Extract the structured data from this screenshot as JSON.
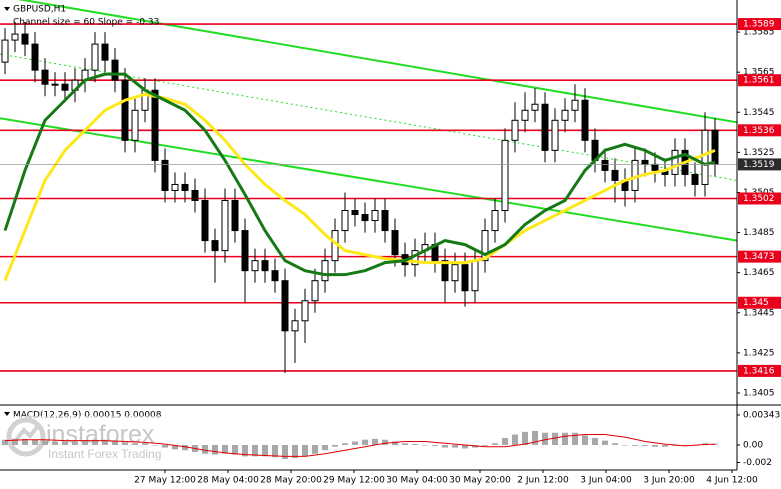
{
  "chart_data": {
    "type": "candlestick",
    "title": "GBPUSD,H1",
    "subtitle": "Channel size = 60 Slope = -0.33",
    "open": [
      1.357,
      1.3581,
      1.3584,
      1.3579,
      1.3566,
      1.3559,
      1.3559,
      1.3556,
      1.3561,
      1.3566,
      1.3579,
      1.3571,
      1.3561,
      1.3531,
      1.3546,
      1.3556,
      1.3521,
      1.3506,
      1.3509,
      1.3506,
      1.3501,
      1.3481,
      1.3476,
      1.3501,
      1.3486,
      1.3466,
      1.3471,
      1.3466,
      1.3461,
      1.3436,
      1.3441,
      1.3451,
      1.3461,
      1.3471,
      1.3486,
      1.3496,
      1.3494,
      1.3491,
      1.3496,
      1.3486,
      1.3474,
      1.3469,
      1.3476,
      1.3479,
      1.3471,
      1.3461,
      1.3469,
      1.3456,
      1.3471,
      1.3486,
      1.3496,
      1.3531,
      1.3541,
      1.3546,
      1.3549,
      1.3526,
      1.3541,
      1.3546,
      1.3551,
      1.3531,
      1.3521,
      1.3516,
      1.3511,
      1.3506,
      1.3521,
      1.3519,
      1.3516,
      1.3514,
      1.3526,
      1.3514,
      1.3509,
      1.3536
    ],
    "high": [
      1.3587,
      1.359,
      1.359,
      1.3585,
      1.3572,
      1.3565,
      1.3565,
      1.3567,
      1.3572,
      1.3585,
      1.3585,
      1.3577,
      1.3567,
      1.3552,
      1.3562,
      1.3562,
      1.3527,
      1.3515,
      1.3515,
      1.3512,
      1.3507,
      1.3487,
      1.3507,
      1.3507,
      1.3492,
      1.3477,
      1.3477,
      1.3472,
      1.3467,
      1.3447,
      1.3457,
      1.3467,
      1.3477,
      1.3492,
      1.3505,
      1.3502,
      1.35,
      1.3502,
      1.3502,
      1.3492,
      1.348,
      1.3482,
      1.3485,
      1.3485,
      1.3477,
      1.3475,
      1.3475,
      1.3477,
      1.3492,
      1.3502,
      1.3537,
      1.355,
      1.3555,
      1.3557,
      1.3555,
      1.3547,
      1.3552,
      1.3559,
      1.3557,
      1.3537,
      1.3527,
      1.3522,
      1.3517,
      1.3527,
      1.3527,
      1.3525,
      1.3522,
      1.3532,
      1.3532,
      1.352,
      1.3545,
      1.3542
    ],
    "low": [
      1.3564,
      1.3575,
      1.3573,
      1.356,
      1.3553,
      1.3553,
      1.355,
      1.355,
      1.3555,
      1.356,
      1.3565,
      1.3555,
      1.3525,
      1.3525,
      1.354,
      1.3515,
      1.35,
      1.35,
      1.35,
      1.3495,
      1.3475,
      1.346,
      1.347,
      1.348,
      1.345,
      1.346,
      1.346,
      1.3455,
      1.3415,
      1.342,
      1.343,
      1.3445,
      1.3455,
      1.3465,
      1.348,
      1.3488,
      1.3485,
      1.3485,
      1.348,
      1.3468,
      1.3463,
      1.3463,
      1.347,
      1.3465,
      1.345,
      1.3455,
      1.3448,
      1.345,
      1.3465,
      1.348,
      1.349,
      1.3525,
      1.3535,
      1.354,
      1.352,
      1.352,
      1.3535,
      1.354,
      1.3525,
      1.3515,
      1.351,
      1.35,
      1.3498,
      1.35,
      1.3513,
      1.351,
      1.3508,
      1.3508,
      1.3508,
      1.3503,
      1.3503,
      1.3513
    ],
    "close": [
      1.3581,
      1.3584,
      1.3579,
      1.3566,
      1.3559,
      1.3559,
      1.3556,
      1.3561,
      1.3566,
      1.3579,
      1.3571,
      1.3561,
      1.3531,
      1.3546,
      1.3556,
      1.3521,
      1.3506,
      1.3509,
      1.3506,
      1.3501,
      1.3481,
      1.3476,
      1.3501,
      1.3486,
      1.3466,
      1.3471,
      1.3466,
      1.3461,
      1.3436,
      1.3441,
      1.3451,
      1.3461,
      1.3471,
      1.3486,
      1.3496,
      1.3494,
      1.3491,
      1.3496,
      1.3486,
      1.3474,
      1.3469,
      1.3476,
      1.3479,
      1.3471,
      1.3461,
      1.3469,
      1.3456,
      1.3471,
      1.3486,
      1.3496,
      1.3531,
      1.3541,
      1.3546,
      1.3549,
      1.3526,
      1.3541,
      1.3546,
      1.3551,
      1.3531,
      1.3521,
      1.3516,
      1.3511,
      1.3506,
      1.3521,
      1.3519,
      1.3516,
      1.3514,
      1.3526,
      1.3514,
      1.3509,
      1.3536,
      1.3519
    ],
    "ylim": [
      1.3399,
      1.3601
    ],
    "yticks": [
      1.3585,
      1.3565,
      1.3545,
      1.3525,
      1.3505,
      1.3485,
      1.3465,
      1.3445,
      1.3425,
      1.3405
    ],
    "levels": {
      "color": "#e8001c",
      "values": [
        1.3589,
        1.3561,
        1.3536,
        1.3502,
        1.3473,
        1.345,
        1.3416
      ]
    },
    "last_price": {
      "value": 1.3519,
      "color": "#2b2b2b"
    },
    "channel": {
      "color": "#22dd22",
      "upper": [
        1.3603,
        1.354
      ],
      "middle": [
        1.3574,
        1.3511
      ],
      "lower": [
        1.3542,
        1.3481
      ]
    },
    "averages": [
      {
        "color": "#ffe81a",
        "x": [
          0,
          2,
          4,
          6,
          8,
          10,
          12,
          14,
          16,
          18,
          20,
          22,
          24,
          26,
          28,
          30,
          32,
          34,
          36,
          38,
          40,
          42,
          44,
          46,
          48,
          50,
          52,
          54,
          56,
          58,
          60,
          62,
          64,
          66,
          68,
          70,
          71
        ],
        "values": [
          1.3461,
          1.3486,
          1.3511,
          1.3526,
          1.3536,
          1.3546,
          1.3551,
          1.3554,
          1.3552,
          1.3549,
          1.3541,
          1.3531,
          1.3519,
          1.3509,
          1.3501,
          1.3494,
          1.3484,
          1.3476,
          1.3474,
          1.3472,
          1.3471,
          1.347,
          1.347,
          1.347,
          1.3472,
          1.3479,
          1.3486,
          1.3491,
          1.3496,
          1.3501,
          1.3506,
          1.3511,
          1.3514,
          1.3516,
          1.352,
          1.3524,
          1.3526
        ]
      },
      {
        "color": "#157a15",
        "x": [
          0,
          2,
          4,
          6,
          8,
          10,
          12,
          14,
          16,
          18,
          20,
          22,
          24,
          26,
          28,
          30,
          32,
          34,
          36,
          38,
          40,
          42,
          44,
          46,
          48,
          50,
          52,
          54,
          56,
          58,
          60,
          62,
          64,
          66,
          68,
          70,
          71
        ],
        "values": [
          1.3486,
          1.3516,
          1.3541,
          1.3551,
          1.3561,
          1.3564,
          1.3564,
          1.3556,
          1.3551,
          1.3546,
          1.3536,
          1.3521,
          1.3504,
          1.3486,
          1.3471,
          1.3466,
          1.3464,
          1.3464,
          1.3466,
          1.347,
          1.3471,
          1.3476,
          1.3481,
          1.3479,
          1.3474,
          1.3479,
          1.3489,
          1.3496,
          1.3501,
          1.3516,
          1.3526,
          1.3529,
          1.3526,
          1.3521,
          1.3524,
          1.3519,
          1.352
        ]
      }
    ],
    "x_labels": [
      "27 May 12:00",
      "28 May 04:00",
      "28 May 20:00",
      "29 May 12:00",
      "30 May 04:00",
      "30 May 20:00",
      "2 Jun 12:00",
      "3 Jun 04:00",
      "3 Jun 20:00",
      "4 Jun 12:00"
    ],
    "macd": {
      "title": "MACD(12,26,9) 0.00015 0.00008",
      "ylim": [
        -0.00286,
        0.00434
      ],
      "yticks": [
        0.00343,
        {
          "value": 0,
          "label": "0.00"
        },
        -0.002
      ],
      "histogram": {
        "color": "#a8a8a8",
        "values": [
          0.0006,
          0.0007,
          0.0007,
          0.0006,
          0.0005,
          0.0004,
          0.0004,
          0.0004,
          0.0005,
          0.0006,
          0.0006,
          0.0005,
          0.0003,
          0.0002,
          0.0002,
          0.0,
          -0.0003,
          -0.0005,
          -0.0006,
          -0.0008,
          -0.001,
          -0.0011,
          -0.001,
          -0.0011,
          -0.0013,
          -0.0013,
          -0.0013,
          -0.0014,
          -0.0016,
          -0.0015,
          -0.0013,
          -0.001,
          -0.0006,
          -0.0002,
          0.0002,
          0.0004,
          0.0006,
          0.0007,
          0.0006,
          0.0004,
          0.0002,
          0.0001,
          0.0,
          -0.0001,
          -0.0003,
          -0.0003,
          -0.0004,
          -0.0003,
          -0.0001,
          0.0002,
          0.0008,
          0.0012,
          0.0015,
          0.0016,
          0.0014,
          0.0014,
          0.0014,
          0.0014,
          0.0011,
          0.0008,
          0.0005,
          0.0002,
          0.0,
          -0.0001,
          -0.0001,
          -0.0002,
          -0.0002,
          -0.0001,
          -0.0001,
          0.0,
          0.0002,
          0.00015
        ]
      },
      "signal": {
        "color": "#e00000",
        "x": [
          0,
          2,
          4,
          6,
          8,
          10,
          12,
          14,
          16,
          18,
          20,
          22,
          24,
          26,
          28,
          30,
          32,
          34,
          36,
          38,
          40,
          42,
          44,
          46,
          48,
          50,
          52,
          54,
          56,
          58,
          60,
          62,
          64,
          66,
          68,
          70,
          71
        ],
        "values": [
          0.0005,
          0.0006,
          0.0006,
          0.0005,
          0.0005,
          0.0005,
          0.0004,
          0.0003,
          0.0001,
          -0.0002,
          -0.0006,
          -0.0009,
          -0.0011,
          -0.0012,
          -0.0013,
          -0.0013,
          -0.001,
          -0.0006,
          -0.0002,
          0.0002,
          0.0004,
          0.0004,
          0.0002,
          0.0,
          -0.0002,
          -0.0002,
          0.0001,
          0.0006,
          0.001,
          0.0012,
          0.0012,
          0.0009,
          0.0004,
          0.0001,
          -0.0001,
          5e-05,
          8e-05
        ]
      }
    },
    "watermark": {
      "brand": "instaforex",
      "tagline": "Instant Forex Trading"
    }
  }
}
